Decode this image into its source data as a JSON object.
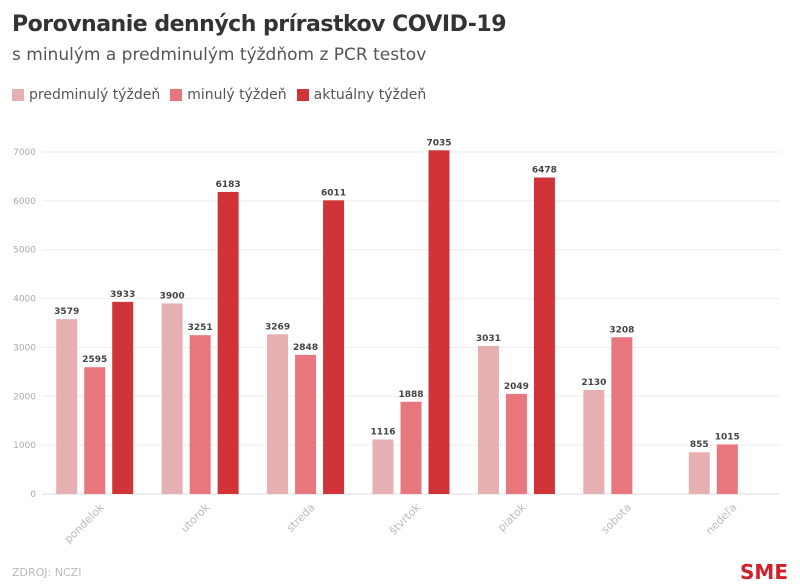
{
  "chart_data": {
    "type": "bar",
    "title": "Porovnanie denných prírastkov COVID-19",
    "subtitle": "s minulým a predminulým týždňom z PCR testov",
    "categories": [
      "pondelok",
      "utorok",
      "streda",
      "štvrtok",
      "piatok",
      "sobota",
      "nedeľa"
    ],
    "series": [
      {
        "name": "predminulý týždeň",
        "color": "#e6b0b3",
        "values": [
          3579,
          3900,
          3269,
          1116,
          3031,
          2130,
          855
        ]
      },
      {
        "name": "minulý týždeň",
        "color": "#e8777d",
        "values": [
          2595,
          3251,
          2848,
          1888,
          2049,
          3208,
          1015
        ]
      },
      {
        "name": "aktuálny týždeň",
        "color": "#d13438",
        "values": [
          3933,
          6183,
          6011,
          7035,
          6478,
          null,
          null
        ]
      }
    ],
    "yticks": [
      0,
      1000,
      2000,
      3000,
      4000,
      5000,
      6000,
      7000
    ],
    "ylim": [
      0,
      7000
    ],
    "grid": true,
    "legend": "top-left",
    "source": "ZDROJ: NCZI",
    "logo": "SME"
  }
}
